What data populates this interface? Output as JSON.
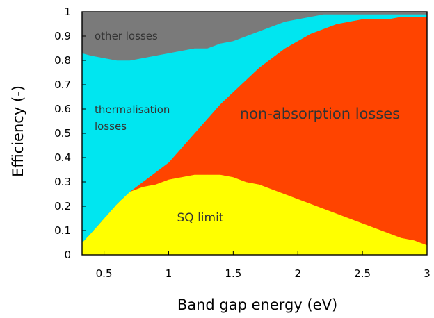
{
  "chart_data": {
    "type": "area",
    "stacked": true,
    "xlabel": "Band gap energy (eV)",
    "ylabel": "Efficiency (-)",
    "xlim": [
      0.33,
      3.0
    ],
    "ylim": [
      0,
      1
    ],
    "x_ticks": [
      "0.5",
      "1",
      "1.5",
      "2",
      "2.5",
      "3"
    ],
    "y_ticks": [
      "0",
      "0.1",
      "0.2",
      "0.3",
      "0.4",
      "0.5",
      "0.6",
      "0.7",
      "0.8",
      "0.9",
      "1"
    ],
    "grid": false,
    "legend": "none",
    "x": [
      0.33,
      0.4,
      0.5,
      0.6,
      0.7,
      0.8,
      0.9,
      1.0,
      1.1,
      1.2,
      1.3,
      1.4,
      1.5,
      1.6,
      1.7,
      1.8,
      1.9,
      2.0,
      2.1,
      2.2,
      2.3,
      2.4,
      2.5,
      2.6,
      2.7,
      2.8,
      2.9,
      3.0
    ],
    "series": [
      {
        "name": "SQ limit",
        "color": "#ffff00",
        "values": [
          0.05,
          0.09,
          0.15,
          0.21,
          0.26,
          0.28,
          0.29,
          0.31,
          0.32,
          0.33,
          0.33,
          0.33,
          0.32,
          0.3,
          0.29,
          0.27,
          0.25,
          0.23,
          0.21,
          0.19,
          0.17,
          0.15,
          0.13,
          0.11,
          0.09,
          0.07,
          0.06,
          0.04
        ]
      },
      {
        "name": "non-absorption losses",
        "color": "#ff4400",
        "values": [
          0.0,
          0.0,
          0.0,
          0.0,
          0.0,
          0.02,
          0.05,
          0.07,
          0.12,
          0.17,
          0.23,
          0.29,
          0.35,
          0.42,
          0.48,
          0.54,
          0.6,
          0.65,
          0.7,
          0.74,
          0.78,
          0.81,
          0.84,
          0.86,
          0.88,
          0.91,
          0.92,
          0.94
        ]
      },
      {
        "name": "thermalisation losses",
        "color": "#00e6f0",
        "values": [
          0.78,
          0.73,
          0.66,
          0.59,
          0.54,
          0.51,
          0.48,
          0.45,
          0.4,
          0.35,
          0.29,
          0.25,
          0.21,
          0.18,
          0.15,
          0.13,
          0.11,
          0.09,
          0.07,
          0.06,
          0.04,
          0.03,
          0.02,
          0.02,
          0.02,
          0.01,
          0.01,
          0.01
        ]
      },
      {
        "name": "other losses",
        "color": "#7a7a7a",
        "values": [
          0.17,
          0.18,
          0.19,
          0.2,
          0.2,
          0.19,
          0.18,
          0.17,
          0.16,
          0.15,
          0.15,
          0.13,
          0.12,
          0.1,
          0.08,
          0.06,
          0.04,
          0.03,
          0.02,
          0.01,
          0.01,
          0.01,
          0.01,
          0.01,
          0.01,
          0.01,
          0.01,
          0.01
        ]
      }
    ],
    "annotations": [
      {
        "text": "SQ limit"
      },
      {
        "text": "non-absorption losses"
      },
      {
        "text": "thermalisation"
      },
      {
        "text": "losses"
      },
      {
        "text": "other losses"
      }
    ]
  }
}
